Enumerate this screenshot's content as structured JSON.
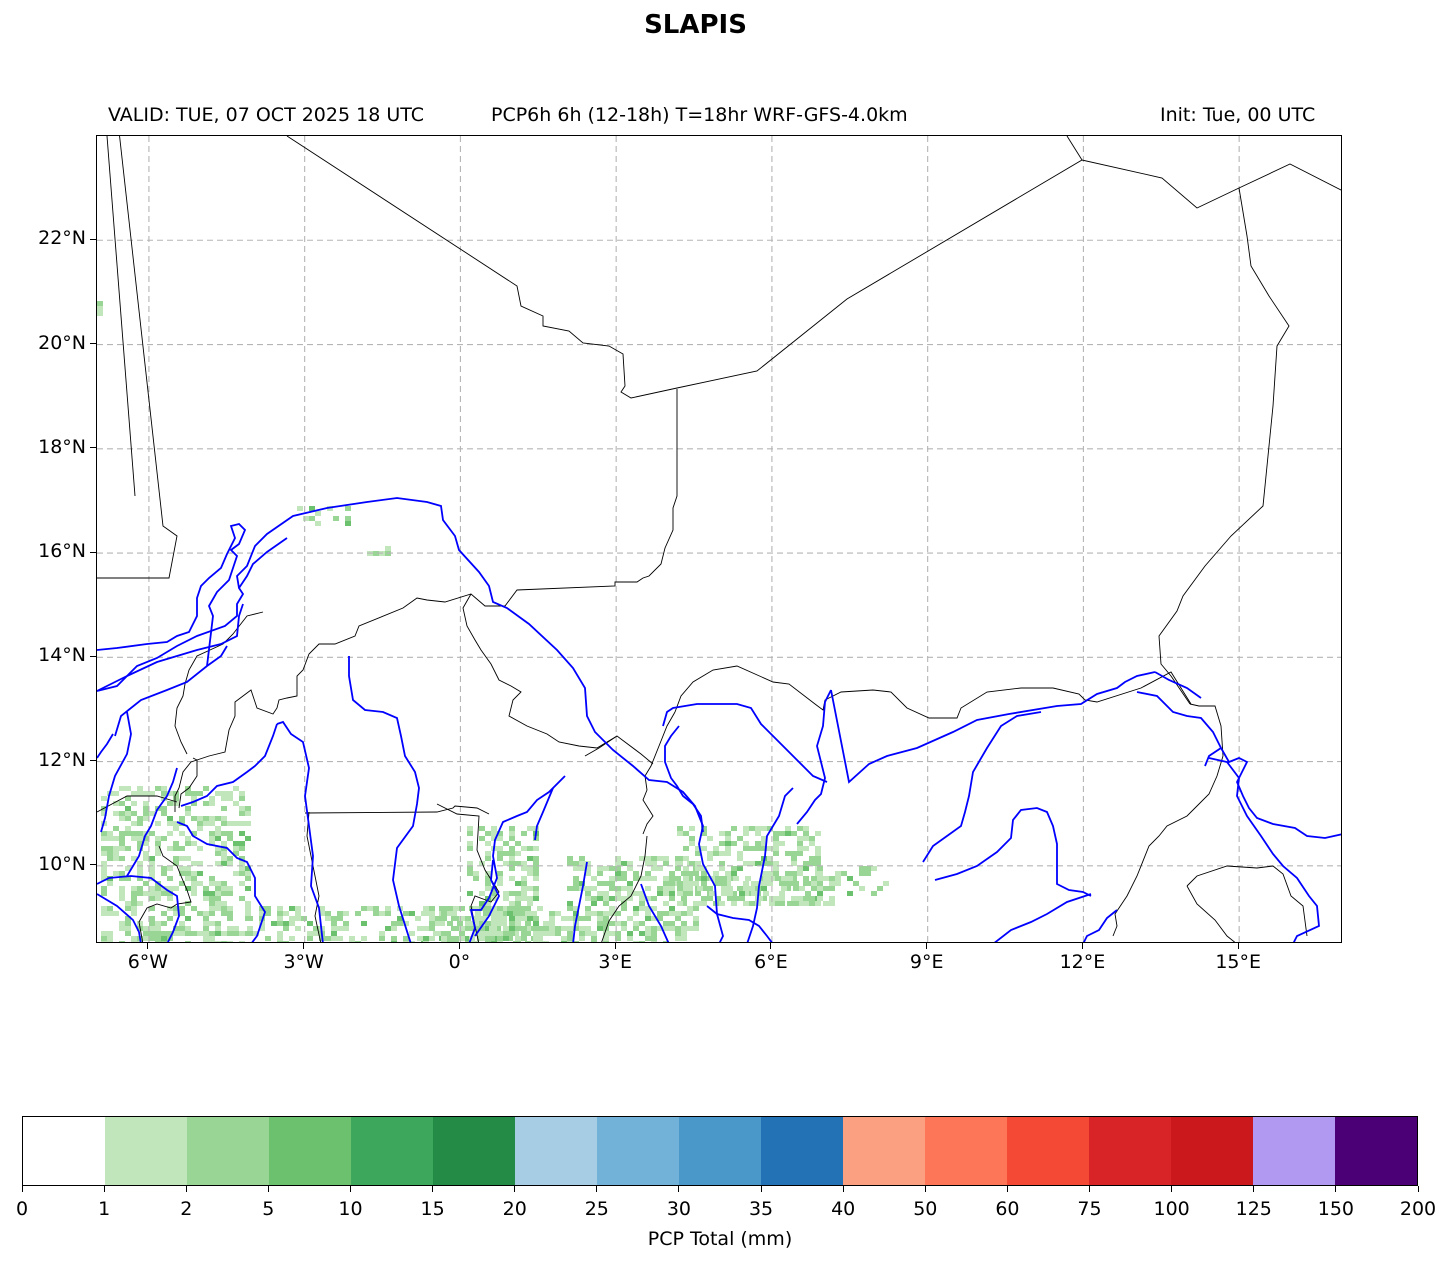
{
  "title": "SLAPIS",
  "subtitle_left": "VALID: TUE, 07 OCT 2025 18 UTC",
  "subtitle_center": "PCP6h 6h (12-18h) T=18hr WRF-GFS-4.0km",
  "subtitle_right": "Init: Tue, 00 UTC",
  "map": {
    "lon_range": [
      -7.0,
      17.0
    ],
    "lat_range": [
      8.5,
      24.0
    ],
    "lon_ticks": [
      "6°W",
      "3°W",
      "0°",
      "3°E",
      "6°E",
      "9°E",
      "12°E",
      "15°E"
    ],
    "lon_tick_values": [
      -6,
      -3,
      0,
      3,
      6,
      9,
      12,
      15
    ],
    "lat_ticks": [
      "22°N",
      "20°N",
      "18°N",
      "16°N",
      "14°N",
      "12°N",
      "10°N"
    ],
    "lat_tick_values": [
      22,
      20,
      18,
      16,
      14,
      12,
      10
    ],
    "gridlines": true,
    "border_color": "#000000",
    "river_color": "#0000ff"
  },
  "colorbar": {
    "label": "PCP Total (mm)",
    "ticks": [
      "0",
      "1",
      "2",
      "5",
      "10",
      "15",
      "20",
      "25",
      "30",
      "35",
      "40",
      "50",
      "60",
      "75",
      "100",
      "125",
      "150",
      "200"
    ],
    "colors": [
      "#ffffff",
      "#c1e6bb",
      "#99d595",
      "#6cc16f",
      "#3da85c",
      "#238b45",
      "#a6cde3",
      "#73b2d8",
      "#4a98c9",
      "#2272b5",
      "#fca082",
      "#fc7657",
      "#f34935",
      "#d82427",
      "#cb181d",
      "#b199f1",
      "#4b0076"
    ]
  }
}
